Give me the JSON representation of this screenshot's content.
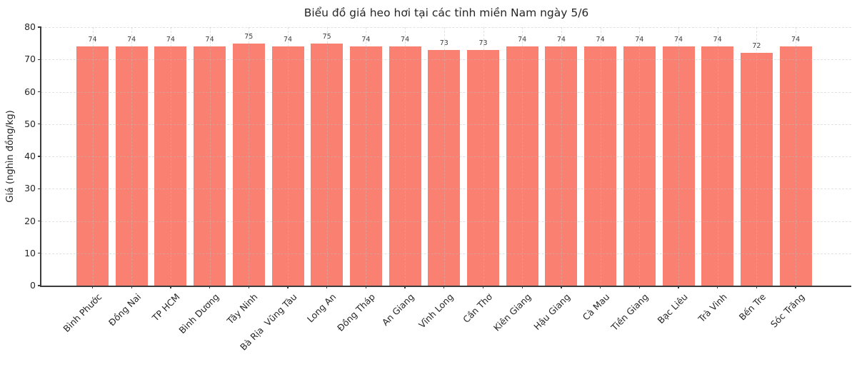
{
  "chart_data": {
    "type": "bar",
    "title": "Biểu đồ giá heo hơi tại các tỉnh miền Nam ngày 5/6",
    "xlabel": "",
    "ylabel": "Giá (nghìn đồng/kg)",
    "categories": [
      "Bình Phước",
      "Đồng Nai",
      "TP HCM",
      "Bình Dương",
      "Tây Ninh",
      "Bà Rịa  Vũng Tàu",
      "Long An",
      "Đồng Tháp",
      "An Giang",
      "Vĩnh Long",
      "Cần Thơ",
      "Kiên Giang",
      "Hậu Giang",
      "Cà Mau",
      "Tiền Giang",
      "Bạc Liêu",
      "Trà Vinh",
      "Bến Tre",
      "Sóc Trăng"
    ],
    "values": [
      74,
      74,
      74,
      74,
      75,
      74,
      75,
      74,
      74,
      73,
      73,
      74,
      74,
      74,
      74,
      74,
      74,
      72,
      74
    ],
    "ylim": [
      0,
      80
    ],
    "yticks": [
      0,
      10,
      20,
      30,
      40,
      50,
      60,
      70,
      80
    ],
    "grid": true,
    "legend": "none",
    "bar_color": "#FA8072",
    "value_labels_shown": true
  }
}
